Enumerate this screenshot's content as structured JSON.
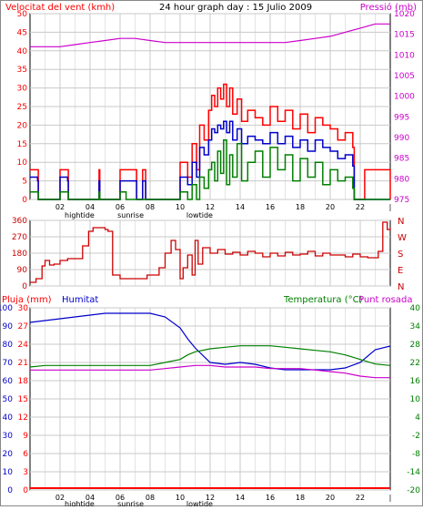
{
  "chart_data": [
    {
      "type": "line",
      "title": "24 hour graph day : 15 Julio 2009",
      "left_label": "Velocitat del vent (kmh)",
      "right_label": "Pressió (mb)",
      "y_ticks_left": [
        "0",
        "5",
        "10",
        "15",
        "20",
        "25",
        "30",
        "35",
        "40",
        "45",
        "50"
      ],
      "y_ticks_right": [
        "975",
        "980",
        "985",
        "990",
        "995",
        "1000",
        "1005",
        "1010",
        "1015",
        "1020"
      ],
      "x_ticks": [
        "02",
        "04",
        "06",
        "08",
        "10",
        "12",
        "14",
        "16",
        "18",
        "20",
        "22",
        "|"
      ],
      "x_annotations": [
        "hightide",
        "sunrise",
        "lowtide"
      ],
      "ylim_left": [
        0,
        50
      ],
      "ylim_right": [
        975,
        1020
      ],
      "xlim": [
        0,
        24
      ],
      "colors": {
        "gust": "#ff0000",
        "average": "#0000cc",
        "lull": "#008000",
        "pressure": "#cc00cc"
      },
      "series": [
        {
          "key": "pressure",
          "axis": "right",
          "x": [
            0,
            1,
            2,
            3,
            4,
            5,
            6,
            7,
            8,
            9,
            10,
            11,
            12,
            13,
            14,
            15,
            16,
            17,
            18,
            19,
            20,
            21,
            22,
            23,
            24
          ],
          "values": [
            1012,
            1012,
            1012,
            1012.5,
            1013,
            1013.5,
            1014,
            1014,
            1013.5,
            1013,
            1013,
            1013,
            1013,
            1013,
            1013,
            1013,
            1013,
            1013,
            1013.5,
            1014,
            1014.5,
            1015.5,
            1016.5,
            1017.5,
            1017.5
          ]
        },
        {
          "key": "gust",
          "axis": "left",
          "x": [
            0,
            0.5,
            0.55,
            1.9,
            2,
            2.5,
            2.55,
            3.9,
            4,
            4.6,
            4.65,
            5.8,
            6,
            6.3,
            7.1,
            7.5,
            7.7,
            9.6,
            10,
            10.5,
            10.8,
            11.1,
            11.3,
            11.6,
            11.9,
            12.1,
            12.3,
            12.5,
            12.7,
            12.9,
            13.1,
            13.3,
            13.5,
            13.8,
            14.1,
            14.5,
            15,
            15.5,
            16,
            16.5,
            17,
            17.5,
            18,
            18.5,
            19,
            19.5,
            20,
            20.5,
            21,
            21.5,
            21.6,
            22.2,
            22.3,
            24
          ],
          "values": [
            8,
            8,
            0,
            0,
            8,
            8,
            0,
            0,
            0,
            8,
            0,
            0,
            8,
            8,
            0,
            8,
            0,
            0,
            10,
            6,
            15,
            8,
            20,
            16,
            24,
            28,
            25,
            30,
            27,
            31,
            25,
            30,
            23,
            27,
            21,
            24,
            22,
            20,
            25,
            21,
            24,
            19,
            23,
            18,
            22,
            20,
            19,
            16,
            18,
            14,
            0,
            0,
            8,
            0
          ]
        },
        {
          "key": "average",
          "axis": "left",
          "x": [
            0,
            0.5,
            0.55,
            1.9,
            2,
            2.5,
            2.55,
            4,
            4.6,
            4.65,
            5.8,
            6,
            6.3,
            7.1,
            7.5,
            7.7,
            9.6,
            10,
            10.5,
            10.8,
            11.1,
            11.3,
            11.6,
            11.9,
            12.1,
            12.3,
            12.5,
            12.7,
            12.9,
            13.1,
            13.3,
            13.5,
            13.8,
            14.1,
            14.5,
            15,
            15.5,
            16,
            16.5,
            17,
            17.5,
            18,
            18.5,
            19,
            19.5,
            20,
            20.5,
            21,
            21.5,
            21.6,
            22.2,
            24
          ],
          "values": [
            6,
            5,
            0,
            0,
            6,
            5,
            0,
            0,
            5,
            0,
            0,
            5,
            5,
            0,
            5,
            0,
            0,
            6,
            4,
            10,
            6,
            14,
            12,
            16,
            19,
            18,
            20,
            19,
            21,
            18,
            21,
            16,
            19,
            15,
            17,
            16,
            15,
            18,
            15,
            17,
            14,
            16,
            13,
            16,
            14,
            13,
            11,
            12,
            9,
            0,
            0,
            0
          ]
        },
        {
          "key": "lull",
          "axis": "left",
          "x": [
            0,
            0.5,
            0.55,
            2,
            2.5,
            2.55,
            4.6,
            4.65,
            6,
            6.3,
            6.4,
            10,
            10.5,
            10.8,
            11.1,
            11.3,
            11.6,
            11.9,
            12.1,
            12.3,
            12.5,
            12.7,
            12.9,
            13.1,
            13.3,
            13.5,
            13.8,
            14.1,
            14.5,
            15,
            15.5,
            16,
            16.5,
            17,
            17.5,
            18,
            18.5,
            19,
            19.5,
            20,
            20.5,
            21,
            21.5,
            21.6,
            24
          ],
          "values": [
            2,
            2,
            0,
            2,
            2,
            0,
            2,
            0,
            2,
            2,
            0,
            2,
            0,
            4,
            0,
            6,
            3,
            8,
            10,
            5,
            13,
            7,
            16,
            4,
            12,
            6,
            15,
            5,
            10,
            13,
            6,
            14,
            8,
            12,
            5,
            11,
            6,
            10,
            4,
            8,
            5,
            6,
            3,
            0,
            0
          ]
        }
      ]
    },
    {
      "type": "line",
      "title": "",
      "y_ticks_left": [
        "360",
        "270",
        "180",
        "90",
        "0"
      ],
      "y_ticks_right": [
        "N",
        "W",
        "S",
        "E",
        "N"
      ],
      "ylim": [
        0,
        360
      ],
      "xlim": [
        0,
        24
      ],
      "colors": {
        "direction": "#cc0000"
      },
      "series": [
        {
          "key": "direction",
          "x": [
            0,
            0.4,
            0.8,
            1,
            1.3,
            1.6,
            2,
            2.5,
            3,
            3.5,
            3.9,
            4.2,
            4.6,
            5,
            5.2,
            5.5,
            6,
            6.5,
            7,
            7.5,
            7.8,
            8.2,
            8.6,
            9,
            9.4,
            9.7,
            10,
            10.2,
            10.5,
            10.8,
            11,
            11.2,
            11.5,
            12,
            12.5,
            13,
            13.5,
            14,
            14.5,
            15,
            15.5,
            16,
            16.5,
            17,
            17.5,
            18,
            18.5,
            19,
            19.5,
            20,
            20.5,
            21,
            21.5,
            22,
            22.5,
            23,
            23.2,
            23.5,
            23.8,
            24
          ],
          "values": [
            20,
            40,
            110,
            140,
            115,
            120,
            140,
            150,
            150,
            220,
            300,
            320,
            320,
            310,
            300,
            60,
            40,
            40,
            40,
            40,
            60,
            60,
            100,
            180,
            250,
            200,
            40,
            100,
            170,
            60,
            250,
            120,
            210,
            180,
            200,
            175,
            185,
            170,
            190,
            180,
            160,
            180,
            165,
            185,
            170,
            175,
            190,
            165,
            180,
            170,
            170,
            160,
            175,
            160,
            155,
            155,
            190,
            350,
            310,
            320
          ]
        }
      ]
    },
    {
      "type": "line",
      "title": "",
      "left_label": "Pluja (mm)",
      "left_label_2": "Humitat",
      "right_label": "Temperatura (°C)",
      "right_label_2": "Punt rosada",
      "y_ticks_left_1": [
        "100",
        "90",
        "80",
        "70",
        "60",
        "50",
        "40",
        "30",
        "20",
        "10",
        "0"
      ],
      "y_ticks_left_2": [
        "30",
        "27",
        "24",
        "21",
        "18",
        "15",
        "12",
        "9",
        "6",
        "3",
        "0"
      ],
      "y_ticks_right": [
        "40",
        "34",
        "28",
        "22",
        "16",
        "10",
        "4",
        "-2",
        "-8",
        "-14",
        "-20"
      ],
      "xlim": [
        0,
        24
      ],
      "colors": {
        "humidity": "#0000cc",
        "temperature": "#008000",
        "dewpoint": "#cc00cc",
        "rain": "#ff0000"
      },
      "series": [
        {
          "key": "humidity",
          "axis": "left_pct",
          "ylim": [
            0,
            100
          ],
          "x": [
            0,
            1,
            2,
            3,
            4,
            5,
            6,
            7,
            8,
            9,
            10,
            10.5,
            11,
            12,
            13,
            14,
            15,
            16,
            17,
            18,
            19,
            20,
            21,
            22,
            23,
            24
          ],
          "values": [
            92,
            93,
            94,
            95,
            96,
            97,
            97,
            97,
            97,
            95,
            89,
            83,
            78,
            70,
            69,
            70,
            69,
            67,
            66,
            66,
            66,
            66,
            67,
            70,
            77,
            79
          ]
        },
        {
          "key": "temperature",
          "axis": "right",
          "ylim": [
            -20,
            40
          ],
          "x": [
            0,
            1,
            2,
            3,
            4,
            5,
            6,
            7,
            8,
            9,
            10,
            10.5,
            11,
            12,
            13,
            14,
            15,
            16,
            17,
            18,
            19,
            20,
            21,
            22,
            23,
            24
          ],
          "values": [
            20.5,
            21,
            21,
            21,
            21,
            21,
            21,
            21,
            21,
            22,
            23,
            24.5,
            25.5,
            26.5,
            27,
            27.5,
            27.5,
            27.5,
            27,
            26.5,
            26,
            25.5,
            24.5,
            23,
            21.5,
            21
          ]
        },
        {
          "key": "dewpoint",
          "axis": "right",
          "ylim": [
            -20,
            40
          ],
          "x": [
            0,
            1,
            2,
            3,
            4,
            5,
            6,
            7,
            8,
            9,
            10,
            11,
            12,
            13,
            14,
            15,
            16,
            17,
            18,
            19,
            20,
            21,
            22,
            23,
            24
          ],
          "values": [
            19.5,
            19.5,
            19.5,
            19.5,
            19.5,
            19.5,
            19.5,
            19.5,
            19.5,
            20,
            20.5,
            21,
            21,
            20.5,
            20.5,
            20.5,
            20,
            20,
            20,
            19.5,
            19,
            18.5,
            17.5,
            17,
            17
          ]
        },
        {
          "key": "rain",
          "axis": "left_mm",
          "ylim": [
            0,
            30
          ],
          "x": [
            0,
            24
          ],
          "values": [
            0,
            0
          ]
        }
      ]
    }
  ]
}
